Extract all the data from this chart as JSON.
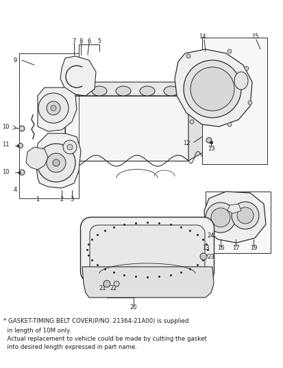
{
  "bg_color": "#ffffff",
  "line_color": "#2a2a2a",
  "text_color": "#1a1a1a",
  "note_line1": "* GASKET-TIMING BELT COVER(P/NO. 21364-21A00) is supplied",
  "note_line2": "  in length of 10M only.",
  "note_line3": "  Actual replacement to vehicle could be made by cutting the gasket",
  "note_line4": "  into desired length expressed in part name.",
  "figsize": [
    4.14,
    5.38
  ],
  "dpi": 100
}
